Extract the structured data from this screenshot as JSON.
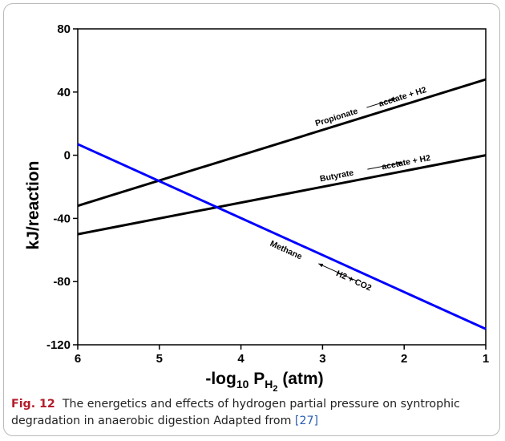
{
  "chart_data": {
    "type": "line",
    "xlabel": "-log10 PH2 (atm)",
    "xlabel_parts": {
      "pre": "-log",
      "sub1": "10",
      "mid": " P",
      "sub2": "H",
      "sub3": "2",
      "post": " (atm)"
    },
    "ylabel": "kJ/reaction",
    "xlim": [
      6,
      1
    ],
    "ylim": [
      -120,
      80
    ],
    "xticks": [
      "6",
      "5",
      "4",
      "3",
      "2",
      "1"
    ],
    "yticks": [
      "80",
      "40",
      "0",
      "-40",
      "-80",
      "-120"
    ],
    "grid": false,
    "series": [
      {
        "x": [
          6,
          1
        ],
        "y": [
          -32,
          48
        ],
        "color": "#000000"
      },
      {
        "x": [
          6,
          1
        ],
        "y": [
          -50,
          0
        ],
        "color": "#000000"
      },
      {
        "x": [
          6,
          1
        ],
        "y": [
          7,
          -110
        ],
        "color": "#0000ff"
      }
    ],
    "annotations": [
      {
        "left": "Propionate",
        "right": "acetate + H2"
      },
      {
        "left": "Butyrate",
        "right": "acetate + H2"
      },
      {
        "left": "Methane",
        "right": "H2 + CO2"
      }
    ]
  },
  "caption": {
    "label": "Fig. 12",
    "text": "The energetics and effects of hydrogen partial pressure on syntrophic degradation in anaerobic digestion Adapted from ",
    "ref": "[27]"
  }
}
